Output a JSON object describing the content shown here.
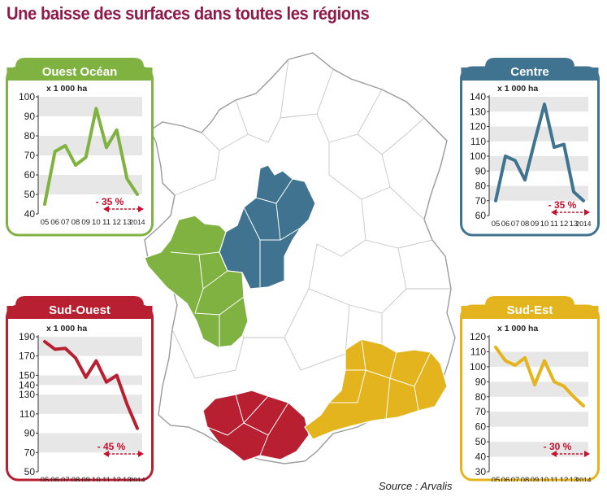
{
  "title": "Une baisse des surfaces dans toutes les régions",
  "source": "Source : Arvalis",
  "colors": {
    "title": "#8e1a4a",
    "ouest": "#7fb241",
    "centre": "#3f7390",
    "sud_ouest": "#b81f31",
    "sud_est": "#e3b41e",
    "band": "#e7e7e7",
    "arrow": "#c8102e"
  },
  "chart_data": [
    {
      "type": "line",
      "region": "Ouest Océan",
      "unit": "x 1 000 ha",
      "categories": [
        "05",
        "06",
        "07",
        "08",
        "09",
        "10",
        "11",
        "12",
        "13",
        "2014"
      ],
      "values": [
        45,
        72,
        75,
        65,
        69,
        94,
        74,
        83,
        58,
        50
      ],
      "ylim": [
        40,
        100
      ],
      "yticks": [
        40,
        50,
        60,
        70,
        80,
        90,
        100
      ],
      "annotation": "- 35 %",
      "color": "#7fb241"
    },
    {
      "type": "line",
      "region": "Centre",
      "unit": "x 1 000 ha",
      "categories": [
        "05",
        "06",
        "07",
        "08",
        "09",
        "10",
        "11",
        "12",
        "13",
        "2014"
      ],
      "values": [
        70,
        100,
        97,
        84,
        110,
        135,
        106,
        108,
        76,
        70
      ],
      "ylim": [
        60,
        140
      ],
      "yticks": [
        60,
        70,
        80,
        90,
        100,
        110,
        120,
        130,
        140
      ],
      "annotation": "- 35 %",
      "color": "#3f7390"
    },
    {
      "type": "line",
      "region": "Sud-Ouest",
      "unit": "x 1 000 ha",
      "categories": [
        "05",
        "06",
        "07",
        "08",
        "09",
        "10",
        "11",
        "12",
        "13",
        "2014"
      ],
      "values": [
        185,
        177,
        178,
        168,
        148,
        165,
        143,
        150,
        120,
        95
      ],
      "ylim": [
        50,
        190
      ],
      "yticks": [
        50,
        70,
        90,
        110,
        130,
        140,
        150,
        170,
        190
      ],
      "annotation": "- 45 %",
      "color": "#b81f31"
    },
    {
      "type": "line",
      "region": "Sud-Est",
      "unit": "x 1 000 ha",
      "categories": [
        "05",
        "06",
        "07",
        "08",
        "09",
        "10",
        "11",
        "12",
        "13",
        "2014"
      ],
      "values": [
        113,
        104,
        101,
        106,
        88,
        104,
        90,
        87,
        80,
        74
      ],
      "ylim": [
        30,
        120
      ],
      "yticks": [
        30,
        40,
        50,
        60,
        70,
        80,
        90,
        100,
        110,
        120
      ],
      "annotation": "- 30 %",
      "color": "#e3b41e"
    }
  ]
}
